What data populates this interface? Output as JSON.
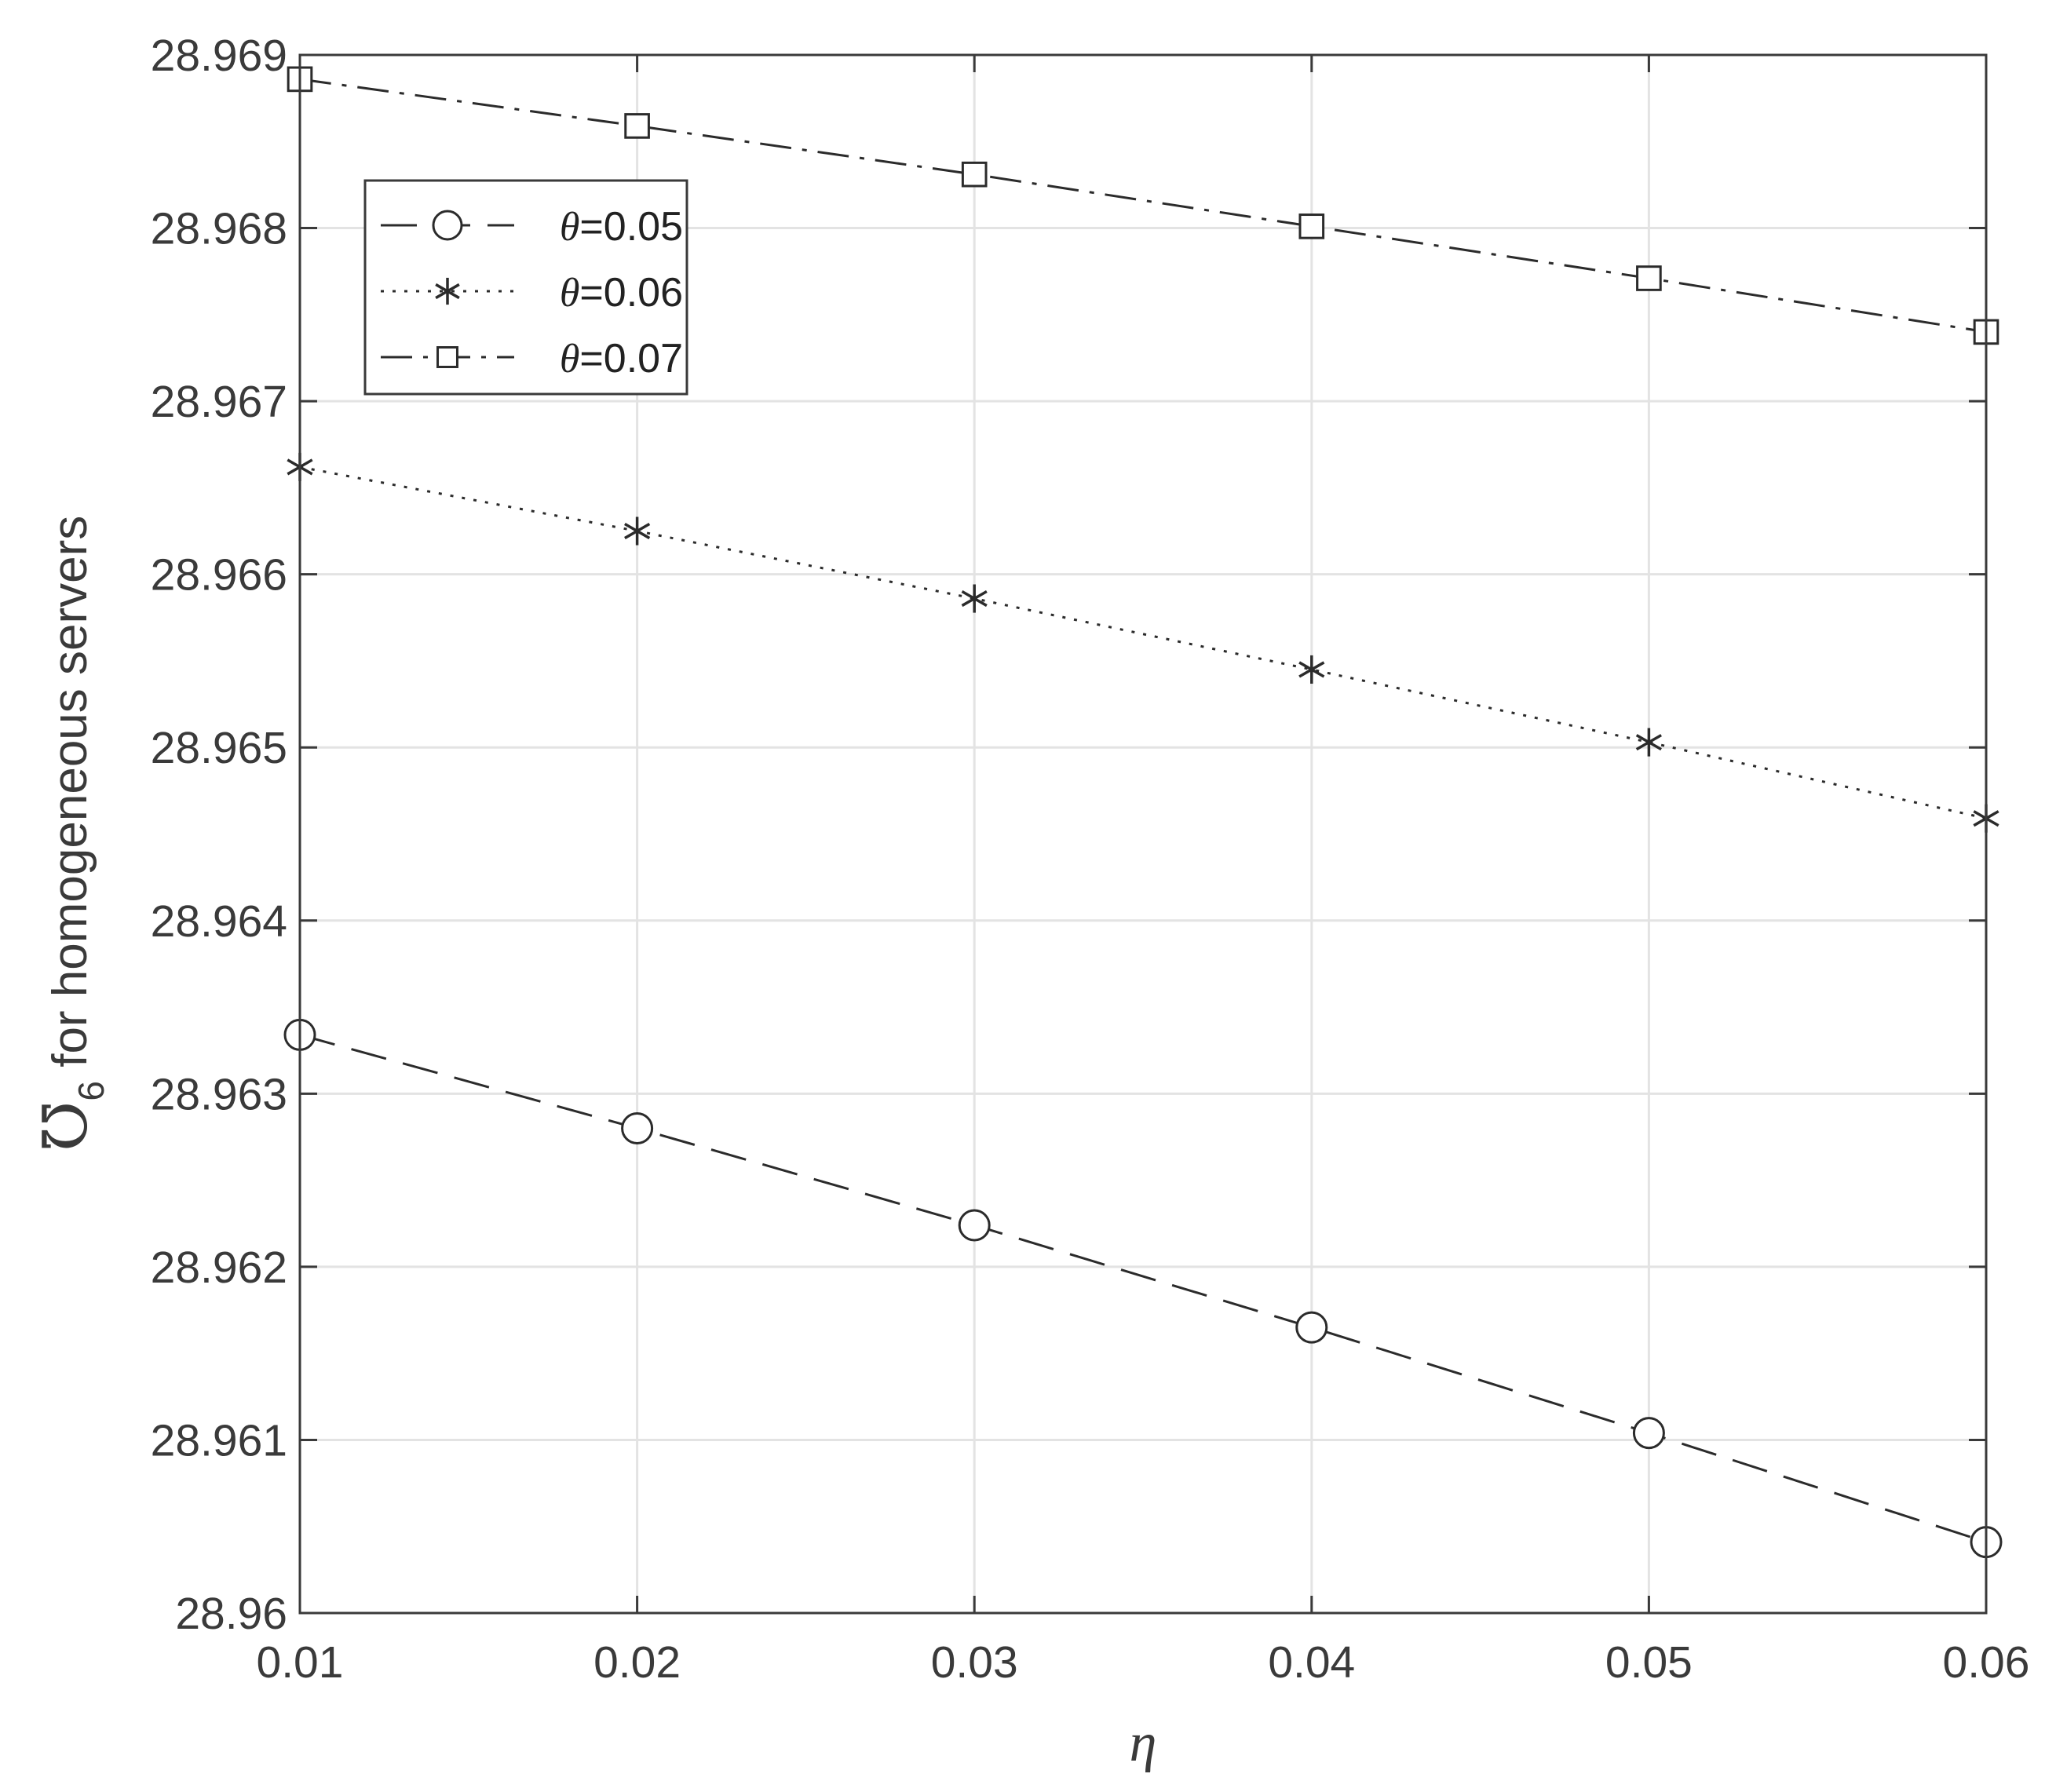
{
  "chart_data": {
    "type": "line",
    "xlabel": "η",
    "ylabel_symbol": "℧",
    "ylabel_subscript": "6",
    "ylabel_text": " for homogeneous servers",
    "x": [
      0.01,
      0.02,
      0.03,
      0.04,
      0.05,
      0.06
    ],
    "xlim": [
      0.01,
      0.06
    ],
    "ylim": [
      28.96,
      28.969
    ],
    "xticks": [
      "0.01",
      "0.02",
      "0.03",
      "0.04",
      "0.05",
      "0.06"
    ],
    "yticks": [
      "28.96",
      "28.961",
      "28.962",
      "28.963",
      "28.964",
      "28.965",
      "28.966",
      "28.967",
      "28.968",
      "28.969"
    ],
    "grid": true,
    "legend_position": "top-left",
    "series": [
      {
        "name": "θ=0.05",
        "symbol": "θ",
        "value_label": "=0.05",
        "marker": "circle",
        "line_style": "dashed",
        "values": [
          28.96334,
          28.9628,
          28.96224,
          28.96165,
          28.96104,
          28.96041
        ]
      },
      {
        "name": "θ=0.06",
        "symbol": "θ",
        "value_label": "=0.06",
        "marker": "asterisk",
        "line_style": "dotted",
        "values": [
          28.96662,
          28.96625,
          28.96586,
          28.96545,
          28.96503,
          28.96459
        ]
      },
      {
        "name": "θ=0.07",
        "symbol": "θ",
        "value_label": "=0.07",
        "marker": "square",
        "line_style": "dash-dot",
        "values": [
          28.96886,
          28.96859,
          28.96831,
          28.96801,
          28.96771,
          28.9674
        ]
      }
    ],
    "colors": {
      "line": "#2b2b2b",
      "grid": "#e3e3e3",
      "axis": "#3a3a3a",
      "background": "#ffffff"
    }
  }
}
